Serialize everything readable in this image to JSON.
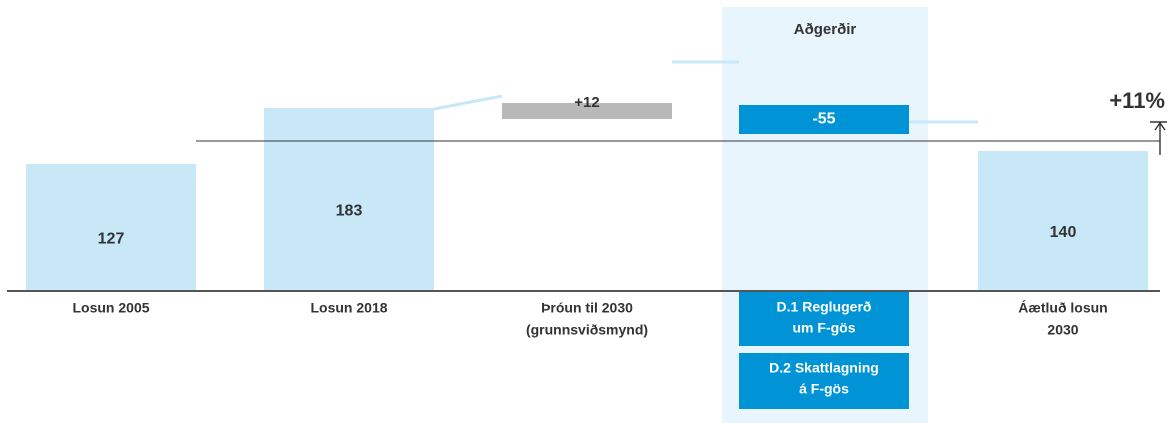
{
  "chart_data": {
    "type": "bar",
    "subtype": "waterfall",
    "title": "",
    "xlabel": "",
    "ylabel": "",
    "ylim": [
      0,
      240
    ],
    "categories": [
      [
        "Losun 2005"
      ],
      [
        "Losun 2018"
      ],
      [
        "Þróun til 2030",
        "(grunnsviðsmynd)"
      ],
      [],
      [
        "Áætluð losun",
        "2030"
      ]
    ],
    "bars": [
      {
        "kind": "total",
        "start": 0,
        "end": 127,
        "label": "127"
      },
      {
        "kind": "total",
        "start": 0,
        "end": 183,
        "label": "183"
      },
      {
        "kind": "increase",
        "start": 183,
        "end": 195,
        "label": "+12"
      },
      {
        "kind": "decrease",
        "start": 195,
        "end": 140,
        "label": "-55"
      },
      {
        "kind": "total",
        "start": 0,
        "end": 140,
        "label": "140"
      }
    ],
    "reference_line": {
      "value": 127
    },
    "change_annotation": {
      "label": "+11%",
      "from": 127,
      "to": 140
    },
    "group": {
      "label": "Aðgerðir"
    },
    "measures": [
      {
        "lines": [
          "D.1 Reglugerð",
          "um F-gös"
        ]
      },
      {
        "lines": [
          "D.2 Skattlagning",
          "á F-gös"
        ]
      }
    ],
    "colors": {
      "total": "#c8e8f8",
      "increase": "#b8b8b8",
      "decrease": "#0094d6",
      "group_bg": "#e8f5fc",
      "axis": "#555555",
      "ref_line": "#333333",
      "connector": "#c8e8f8",
      "text": "#333333"
    }
  }
}
